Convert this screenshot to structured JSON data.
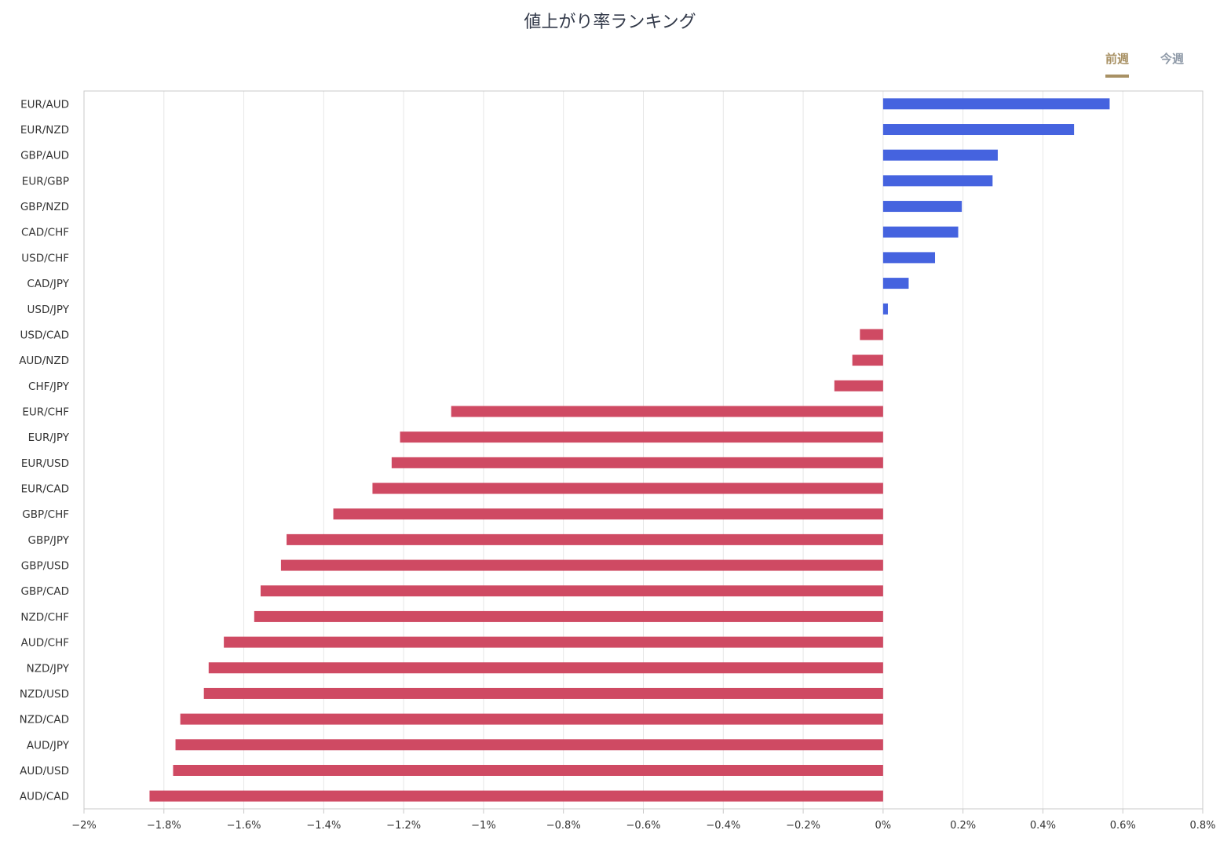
{
  "title": "値上がり率ランキング",
  "tabs": [
    {
      "label": "前週",
      "active": true
    },
    {
      "label": "今週",
      "active": false
    }
  ],
  "colors": {
    "positive": "#4563df",
    "negative": "#cf4a63",
    "active_tab": "#a89164",
    "inactive_tab": "#8f9aa8",
    "grid": "#e6e6e6"
  },
  "chart_data": {
    "type": "bar",
    "orientation": "horizontal",
    "unit": "%",
    "xlim": [
      -2,
      0.8
    ],
    "x_ticks": [
      -2,
      -1.8,
      -1.6,
      -1.4,
      -1.2,
      -1,
      -0.8,
      -0.6,
      -0.4,
      -0.2,
      0,
      0.2,
      0.4,
      0.6,
      0.8
    ],
    "x_tick_labels": [
      "−2%",
      "−1.8%",
      "−1.6%",
      "−1.4%",
      "−1.2%",
      "−1%",
      "−0.8%",
      "−0.6%",
      "−0.4%",
      "−0.2%",
      "0%",
      "0.2%",
      "0.4%",
      "0.6%",
      "0.8%"
    ],
    "grid": true,
    "categories": [
      "EUR/AUD",
      "EUR/NZD",
      "GBP/AUD",
      "EUR/GBP",
      "GBP/NZD",
      "CAD/CHF",
      "USD/CHF",
      "CAD/JPY",
      "USD/JPY",
      "USD/CAD",
      "AUD/NZD",
      "CHF/JPY",
      "EUR/CHF",
      "EUR/JPY",
      "EUR/USD",
      "EUR/CAD",
      "GBP/CHF",
      "GBP/JPY",
      "GBP/USD",
      "GBP/CAD",
      "NZD/CHF",
      "AUD/CHF",
      "NZD/JPY",
      "NZD/USD",
      "NZD/CAD",
      "AUD/JPY",
      "AUD/USD",
      "AUD/CAD"
    ],
    "values": [
      0.567,
      0.478,
      0.287,
      0.274,
      0.197,
      0.188,
      0.13,
      0.064,
      0.012,
      -0.058,
      -0.077,
      -0.122,
      -1.081,
      -1.209,
      -1.23,
      -1.278,
      -1.376,
      -1.493,
      -1.507,
      -1.558,
      -1.574,
      -1.65,
      -1.688,
      -1.7,
      -1.759,
      -1.771,
      -1.777,
      -1.836
    ]
  }
}
